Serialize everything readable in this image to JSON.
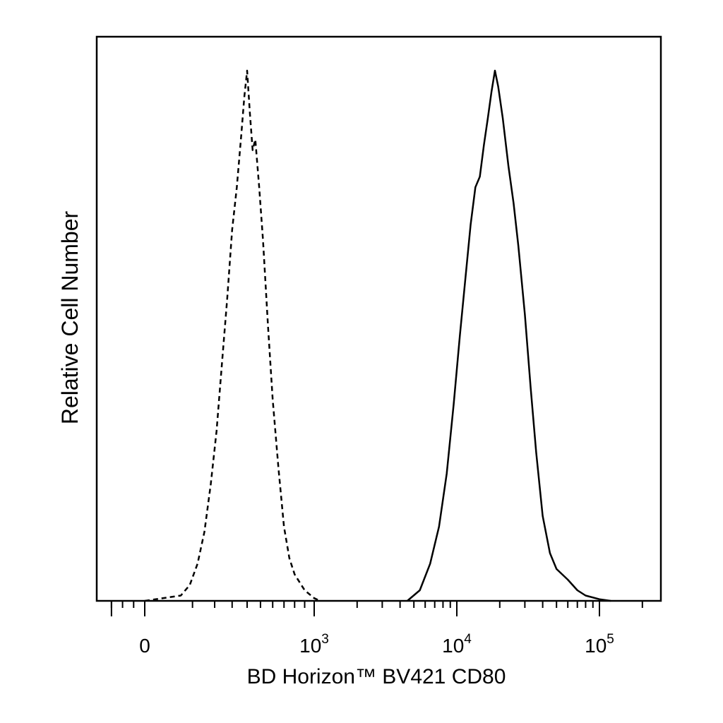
{
  "chart_data": {
    "type": "area",
    "xlabel": "BD Horizon™ BV421 CD80",
    "ylabel": "Relative Cell Number",
    "x_scale": "biexponential",
    "xlim": [
      -350,
      250000
    ],
    "ylim": [
      0,
      1
    ],
    "grid": false,
    "legend": "none",
    "x_ticks": [
      {
        "value": 0,
        "base": "0",
        "exp": ""
      },
      {
        "value": 1000,
        "base": "10",
        "exp": "3"
      },
      {
        "value": 10000,
        "base": "10",
        "exp": "4"
      },
      {
        "value": 100000,
        "base": "10",
        "exp": "5"
      }
    ],
    "series": [
      {
        "style": "dashed",
        "color": "#000000",
        "x": [
          0,
          60,
          90,
          120,
          150,
          180,
          210,
          240,
          270,
          300,
          330,
          360,
          380,
          400,
          420,
          440,
          460,
          490,
          520,
          560,
          600,
          650,
          700,
          750,
          800,
          900,
          1000,
          1100
        ],
        "y": [
          0.0,
          0.01,
          0.03,
          0.07,
          0.13,
          0.22,
          0.32,
          0.45,
          0.57,
          0.7,
          0.78,
          0.88,
          0.95,
          1.0,
          0.92,
          0.85,
          0.87,
          0.78,
          0.68,
          0.52,
          0.38,
          0.25,
          0.14,
          0.08,
          0.05,
          0.02,
          0.005,
          0.0
        ]
      },
      {
        "style": "solid",
        "color": "#000000",
        "x": [
          4500,
          5500,
          6500,
          7500,
          8500,
          9500,
          10500,
          11500,
          12500,
          13500,
          14500,
          15500,
          16500,
          17500,
          18500,
          19500,
          21000,
          23000,
          25000,
          27000,
          30000,
          33000,
          36000,
          40000,
          45000,
          50000,
          60000,
          70000,
          80000,
          100000,
          120000
        ],
        "y": [
          0.0,
          0.02,
          0.07,
          0.14,
          0.24,
          0.37,
          0.5,
          0.61,
          0.71,
          0.78,
          0.8,
          0.86,
          0.91,
          0.96,
          1.0,
          0.97,
          0.91,
          0.82,
          0.75,
          0.67,
          0.54,
          0.4,
          0.28,
          0.16,
          0.09,
          0.06,
          0.04,
          0.02,
          0.01,
          0.003,
          0.0
        ]
      }
    ]
  }
}
